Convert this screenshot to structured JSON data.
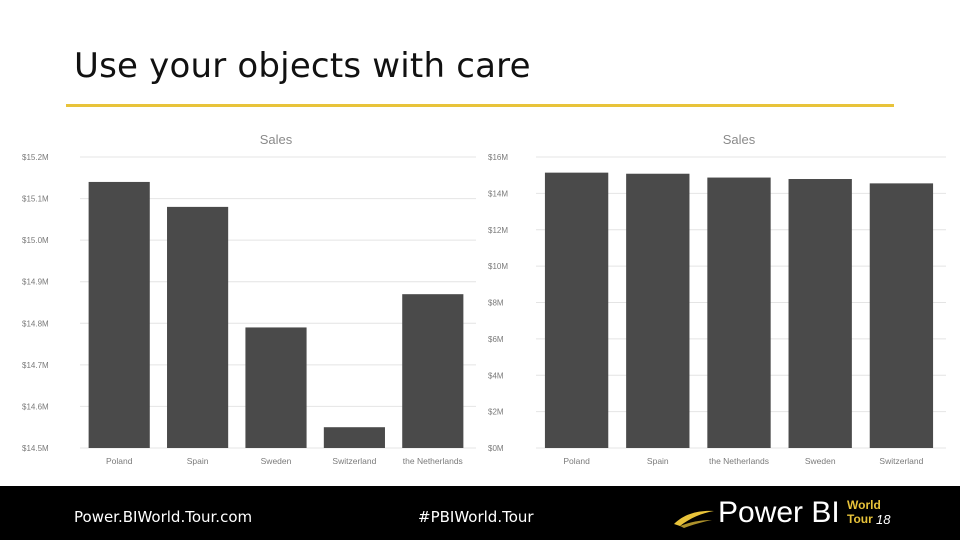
{
  "slide": {
    "title": "Use your objects with care",
    "accent_color": "#e8c33a"
  },
  "chart_data": [
    {
      "type": "bar",
      "title": "Sales",
      "categories": [
        "Poland",
        "Spain",
        "Sweden",
        "Switzerland",
        "the Netherlands"
      ],
      "values": [
        15.14,
        15.08,
        14.79,
        14.55,
        14.87
      ],
      "ylim": [
        14.5,
        15.2
      ],
      "ticks": [
        14.5,
        14.6,
        14.7,
        14.8,
        14.9,
        15.0,
        15.1,
        15.2
      ],
      "tick_labels": [
        "$14.5M",
        "$14.6M",
        "$14.7M",
        "$14.8M",
        "$14.9M",
        "$15.0M",
        "$15.1M",
        "$15.2M"
      ],
      "unit": "$M",
      "grid": true,
      "bar_color": "#4a4a4a"
    },
    {
      "type": "bar",
      "title": "Sales",
      "categories": [
        "Poland",
        "Spain",
        "the Netherlands",
        "Sweden",
        "Switzerland"
      ],
      "values": [
        15.14,
        15.08,
        14.87,
        14.79,
        14.55
      ],
      "ylim": [
        0,
        16
      ],
      "ticks": [
        0,
        2,
        4,
        6,
        8,
        10,
        12,
        14,
        16
      ],
      "tick_labels": [
        "$0M",
        "$2M",
        "$4M",
        "$6M",
        "$8M",
        "$10M",
        "$12M",
        "$14M",
        "$16M"
      ],
      "unit": "$M",
      "grid": true,
      "bar_color": "#4a4a4a"
    }
  ],
  "footer": {
    "website": "Power.BIWorld.Tour.com",
    "hashtag": "#PBIWorld.Tour",
    "logo": {
      "power_bi": "Power BI",
      "world": "World",
      "tour": "Tour",
      "year": "18",
      "logo_accent": "#e8c33a"
    },
    "background": "#000000"
  }
}
